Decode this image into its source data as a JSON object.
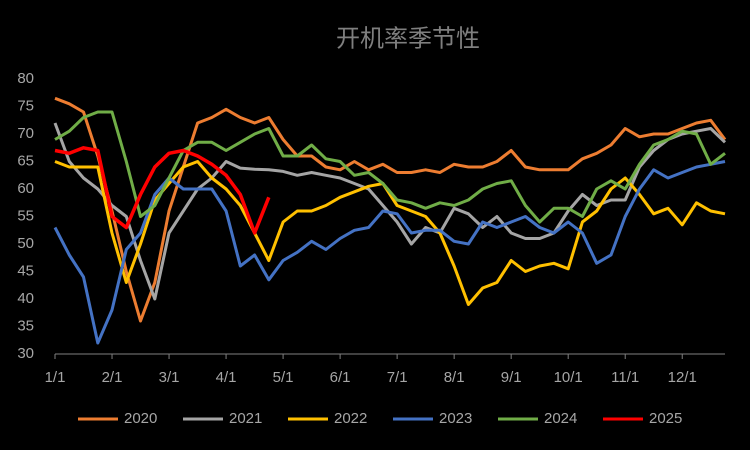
{
  "chart_data": {
    "type": "line",
    "title": "开机率季节性",
    "categories": [
      "1/1",
      null,
      null,
      null,
      "2/1",
      null,
      null,
      null,
      "3/1",
      null,
      null,
      null,
      "4/1",
      null,
      null,
      null,
      "5/1",
      null,
      null,
      null,
      "6/1",
      null,
      null,
      null,
      "7/1",
      null,
      null,
      null,
      "8/1",
      null,
      null,
      null,
      "9/1",
      null,
      null,
      null,
      "10/1",
      null,
      null,
      null,
      "11/1",
      null,
      null,
      null,
      "12/1",
      null,
      null,
      null
    ],
    "ylim": [
      30,
      80
    ],
    "yticks": [
      30,
      35,
      40,
      45,
      50,
      55,
      60,
      65,
      70,
      75,
      80
    ],
    "grid": false,
    "legend": "bottom",
    "series": [
      {
        "name": "2020",
        "color": "#ed7d31",
        "values": [
          76.5,
          75.5,
          74,
          66,
          56,
          45,
          36,
          43,
          56,
          64,
          72,
          73,
          74.5,
          73,
          72,
          73,
          69,
          66,
          66,
          64,
          63.5,
          65,
          63.5,
          64.5,
          63,
          63,
          63.5,
          63,
          64.5,
          64,
          64,
          65,
          67,
          64,
          63.5,
          63.5,
          63.5,
          65.5,
          66.5,
          68,
          71,
          69.5,
          70,
          70,
          71,
          72,
          72.5,
          69
        ]
      },
      {
        "name": "2021",
        "color": "#a5a5a5",
        "values": [
          72,
          65,
          62,
          60,
          57,
          55,
          47,
          40,
          52,
          56,
          60,
          62,
          65,
          63.8,
          63.6,
          63.5,
          63.2,
          62.5,
          63,
          62.5,
          62,
          61,
          60,
          57,
          54,
          50,
          53,
          52,
          56.5,
          55.5,
          53,
          55,
          52,
          51,
          51,
          52,
          56,
          59,
          57,
          58,
          58,
          64,
          67,
          69,
          70,
          70.5,
          71,
          68.5
        ]
      },
      {
        "name": "2022",
        "color": "#ffc000",
        "values": [
          65,
          64,
          64,
          64,
          52,
          43,
          50,
          58,
          61,
          64,
          65,
          62,
          60,
          57,
          52,
          47,
          54,
          56,
          56,
          57,
          58.5,
          59.5,
          60.5,
          61,
          57,
          56,
          55,
          52,
          46,
          39,
          42,
          43,
          47,
          45,
          46,
          46.5,
          45.5,
          54,
          56,
          60,
          62,
          59,
          55.5,
          56.5,
          53.5,
          57.5,
          56,
          55.5
        ]
      },
      {
        "name": "2023",
        "color": "#4472c4",
        "values": [
          53,
          48,
          44,
          32,
          38,
          49,
          52,
          59,
          62,
          60,
          60,
          60,
          56,
          46,
          48,
          43.5,
          47,
          48.5,
          50.5,
          49,
          51,
          52.5,
          53,
          56,
          55.5,
          52,
          52.5,
          52.5,
          50.5,
          50,
          54,
          53,
          54,
          55,
          53,
          52,
          54,
          52,
          46.5,
          48,
          55,
          60,
          63.5,
          62,
          63,
          64,
          64.5,
          65
        ]
      },
      {
        "name": "2024",
        "color": "#70ad47",
        "values": [
          69,
          70.5,
          73,
          74,
          74,
          65,
          55,
          57,
          62,
          67,
          68.5,
          68.5,
          67,
          68.5,
          70,
          71,
          66,
          66,
          68,
          65.5,
          65,
          62.5,
          63,
          61,
          58,
          57.5,
          56.5,
          57.5,
          57,
          58,
          60,
          61,
          61.5,
          57,
          54,
          56.5,
          56.5,
          55,
          60,
          61.5,
          60,
          64.5,
          68,
          69,
          70.5,
          70,
          64.5,
          66.5
        ]
      },
      {
        "name": "2025",
        "color": "#ff0000",
        "values": [
          67,
          66.5,
          67.5,
          67,
          55,
          53,
          59,
          64,
          66.5,
          67,
          66,
          64.5,
          62.5,
          59,
          52,
          58.5,
          null,
          null,
          null,
          null,
          null,
          null,
          null,
          null,
          null,
          null,
          null,
          null,
          null,
          null,
          null,
          null,
          null,
          null,
          null,
          null,
          null,
          null,
          null,
          null,
          null,
          null,
          null,
          null,
          null,
          null,
          null,
          null
        ]
      }
    ]
  }
}
